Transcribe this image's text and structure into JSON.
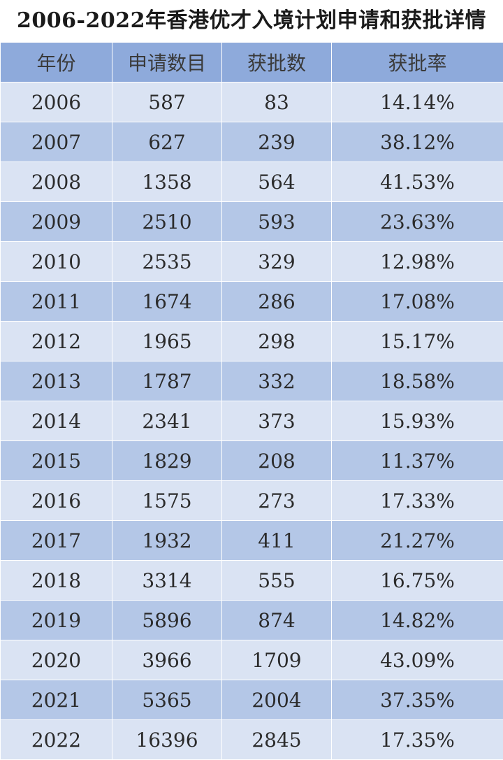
{
  "title": "2006-2022年香港优才入境计划申请和获批详情",
  "headers": [
    "年份",
    "申请数目",
    "获批数",
    "获批率"
  ],
  "rows": [
    [
      "2006",
      "587",
      "83",
      "14.14%"
    ],
    [
      "2007",
      "627",
      "239",
      "38.12%"
    ],
    [
      "2008",
      "1358",
      "564",
      "41.53%"
    ],
    [
      "2009",
      "2510",
      "593",
      "23.63%"
    ],
    [
      "2010",
      "2535",
      "329",
      "12.98%"
    ],
    [
      "2011",
      "1674",
      "286",
      "17.08%"
    ],
    [
      "2012",
      "1965",
      "298",
      "15.17%"
    ],
    [
      "2013",
      "1787",
      "332",
      "18.58%"
    ],
    [
      "2014",
      "2341",
      "373",
      "15.93%"
    ],
    [
      "2015",
      "1829",
      "208",
      "11.37%"
    ],
    [
      "2016",
      "1575",
      "273",
      "17.33%"
    ],
    [
      "2017",
      "1932",
      "411",
      "21.27%"
    ],
    [
      "2018",
      "3314",
      "555",
      "16.75%"
    ],
    [
      "2019",
      "5896",
      "874",
      "14.82%"
    ],
    [
      "2020",
      "3966",
      "1709",
      "43.09%"
    ],
    [
      "2021",
      "5365",
      "2004",
      "37.35%"
    ],
    [
      "2022",
      "16396",
      "2845",
      "17.35%"
    ]
  ],
  "colors": {
    "header_bg": "#8eaadb",
    "row_light": "#dae3f3",
    "row_dark": "#b4c7e7"
  }
}
